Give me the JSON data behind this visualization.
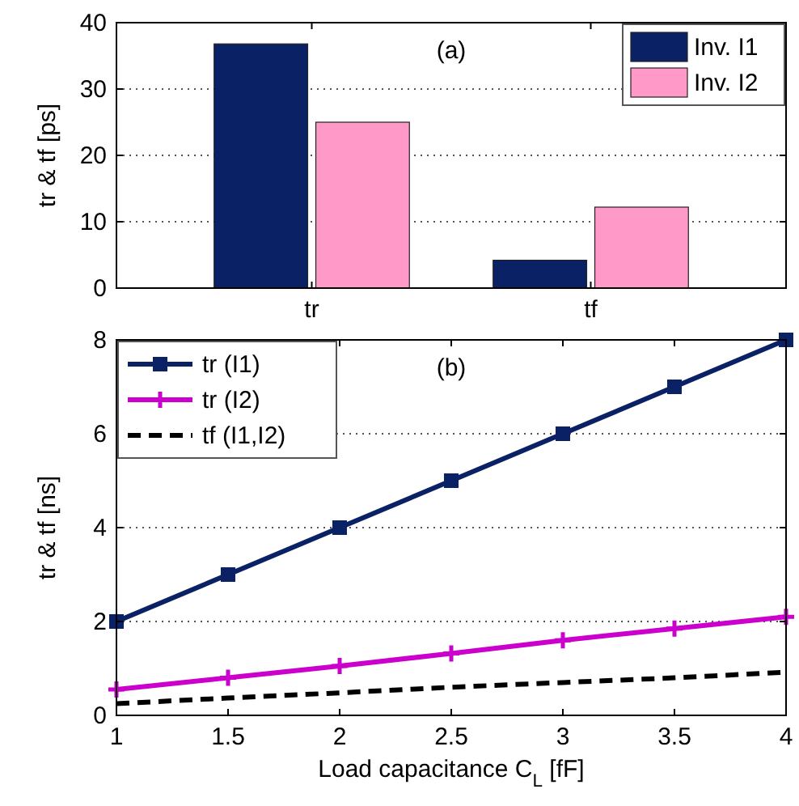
{
  "chart_data": [
    {
      "type": "bar",
      "categories": [
        "tr",
        "tf"
      ],
      "ylabel": "tr & tf  [ps]",
      "ylim": [
        0,
        40
      ],
      "yticks": [
        0,
        10,
        20,
        30,
        40
      ],
      "grid": "y",
      "legend": "top right",
      "annotations": [
        "(a)"
      ],
      "series": [
        {
          "name": "Inv. I1",
          "color": "#0a2165",
          "values": [
            36.8,
            4.2
          ]
        },
        {
          "name": "Inv. I2",
          "color": "#ff99c8",
          "values": [
            25,
            12.2
          ]
        }
      ]
    },
    {
      "type": "line",
      "x": [
        1,
        1.5,
        2,
        2.5,
        3,
        3.5,
        4
      ],
      "xlabel": "Load capacitance C$_{L}$  [fF]",
      "ylabel": "tr & tf  [ns]",
      "xlim": [
        1,
        4
      ],
      "xticks": [
        1,
        1.5,
        2,
        2.5,
        3,
        3.5,
        4
      ],
      "ylim": [
        0,
        8
      ],
      "yticks": [
        0,
        2,
        4,
        6,
        8
      ],
      "grid": "y",
      "legend": "top left",
      "annotations": [
        "(b)"
      ],
      "series": [
        {
          "name": "tr (I1)",
          "color": "#0a2165",
          "marker": "square",
          "line_style": "solid",
          "values": [
            2,
            3,
            4,
            5,
            6,
            7,
            8
          ]
        },
        {
          "name": "tr (I2)",
          "color": "#cc00cc",
          "marker": "cross",
          "line_style": "solid",
          "values": [
            0.55,
            0.8,
            1.05,
            1.32,
            1.6,
            1.85,
            2.1
          ]
        },
        {
          "name": "tf (I1,I2)",
          "color": "#000000",
          "marker": "none",
          "line_style": "dashed",
          "values": [
            0.25,
            0.37,
            0.48,
            0.6,
            0.7,
            0.8,
            0.92
          ]
        }
      ]
    }
  ]
}
